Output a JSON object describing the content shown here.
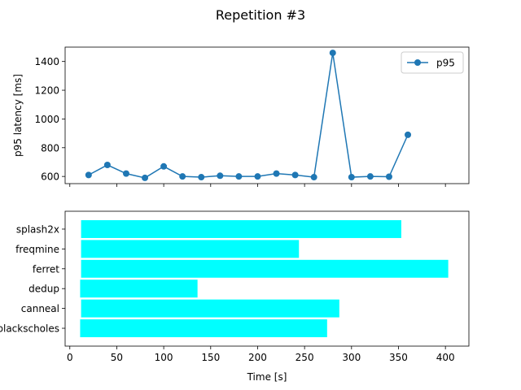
{
  "chart_data": [
    {
      "type": "line",
      "suptitle": "Repetition #3",
      "title": "",
      "xlabel": "",
      "ylabel": "p95 latency [ms]",
      "xlim": [
        -5,
        425
      ],
      "ylim": [
        550,
        1500
      ],
      "yticks": [
        600,
        800,
        1000,
        1200,
        1400
      ],
      "grid": false,
      "legend_position": "top-right",
      "series": [
        {
          "name": "p95",
          "color": "#1f77b4",
          "marker": "circle",
          "x": [
            20,
            40,
            60,
            80,
            100,
            120,
            140,
            160,
            180,
            200,
            220,
            240,
            260,
            280,
            300,
            320,
            340,
            360
          ],
          "y": [
            610,
            680,
            620,
            590,
            670,
            600,
            595,
            605,
            600,
            600,
            620,
            610,
            595,
            1460,
            595,
            600,
            598,
            890
          ]
        }
      ]
    },
    {
      "type": "bar",
      "orientation": "horizontal",
      "xlabel": "Time [s]",
      "ylabel": "",
      "xlim": [
        -5,
        425
      ],
      "xticks": [
        0,
        50,
        100,
        150,
        200,
        250,
        300,
        350,
        400
      ],
      "grid": false,
      "color": "#00ffff",
      "categories": [
        "blackscholes",
        "canneal",
        "dedup",
        "ferret",
        "freqmine",
        "splash2x"
      ],
      "start": [
        11,
        12,
        11,
        12,
        12,
        12
      ],
      "end": [
        274,
        287,
        136,
        403,
        244,
        353
      ]
    }
  ]
}
